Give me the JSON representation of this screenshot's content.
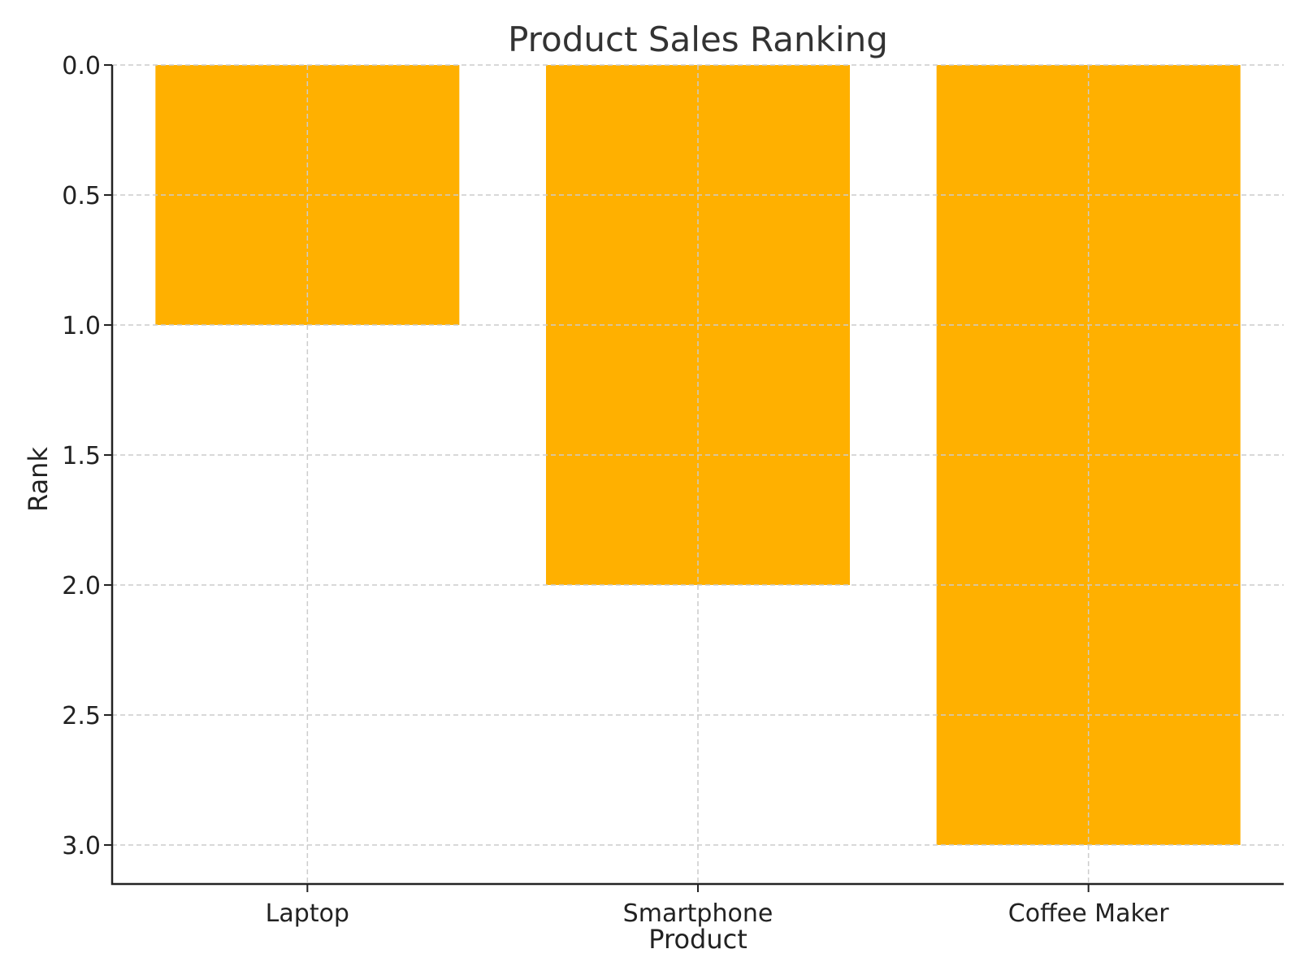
{
  "chart_data": {
    "type": "bar",
    "title": "Product Sales Ranking",
    "xlabel": "Product",
    "ylabel": "Rank",
    "categories": [
      "Laptop",
      "Smartphone",
      "Coffee Maker"
    ],
    "values": [
      1,
      2,
      3
    ],
    "ylim": [
      0,
      3.15
    ],
    "y_inverted": true,
    "yticks": [
      "0.0",
      "0.5",
      "1.0",
      "1.5",
      "2.0",
      "2.5",
      "3.0"
    ],
    "grid": true,
    "bar_color": "#FFB000"
  }
}
